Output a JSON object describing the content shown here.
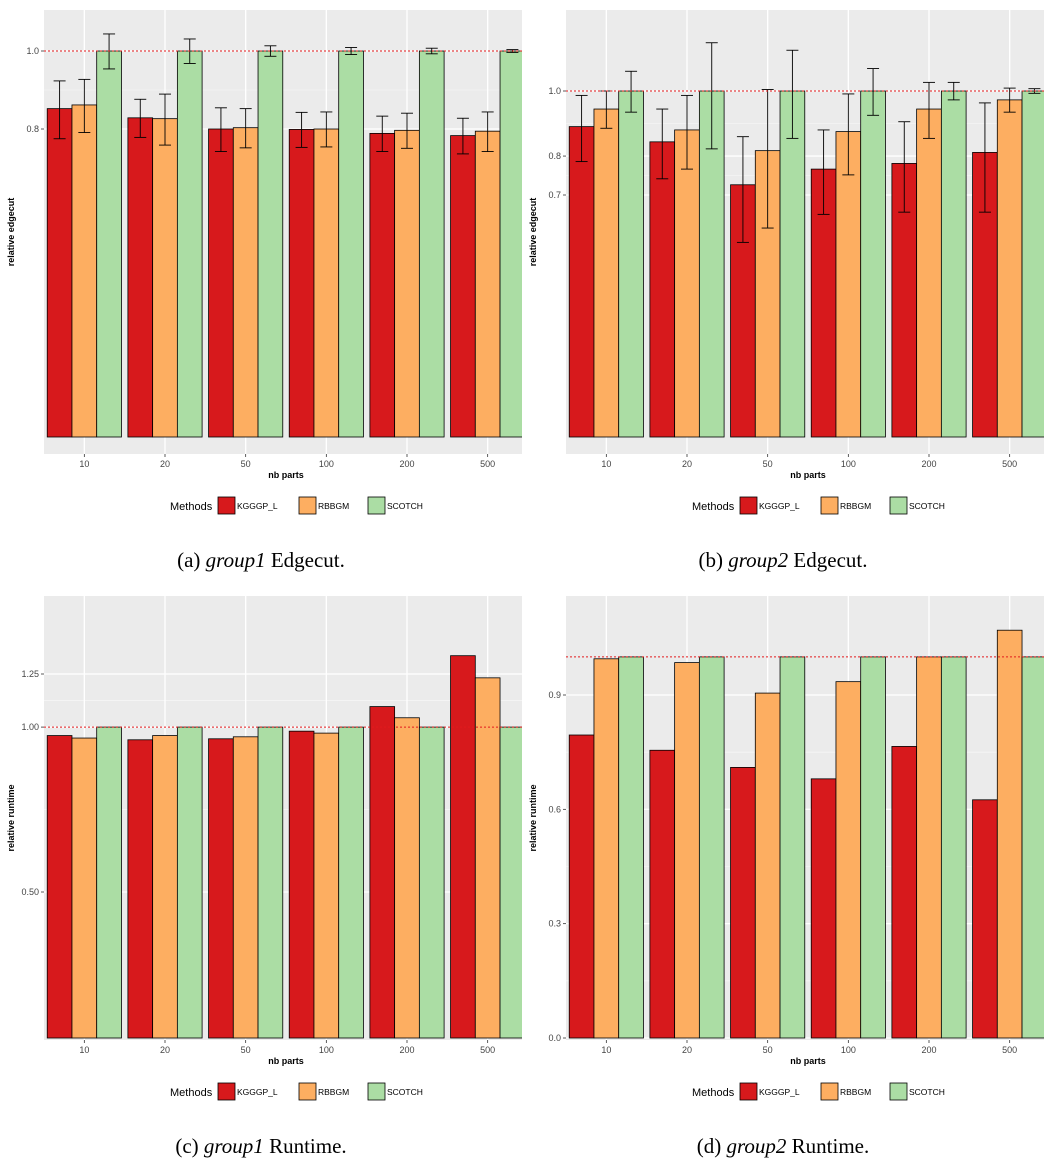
{
  "chart_data": [
    {
      "type": "bar",
      "caption_prefix": "(a)",
      "caption_italic": "group1",
      "caption_suffix": "Edgecut.",
      "categories": [
        "10",
        "20",
        "50",
        "100",
        "200",
        "500"
      ],
      "xlabel": "nb parts",
      "ylabel": "relative edgecut",
      "ylim": [
        0,
        1.1
      ],
      "scale": "log",
      "yticks": [
        0.8,
        1.0
      ],
      "ytick_labels": [
        "0.8",
        "1.0"
      ],
      "reference_line": 1.0,
      "series": [
        {
          "name": "KGGGP_L",
          "color": "#d7191c",
          "values": [
            0.848,
            0.826,
            0.8,
            0.799,
            0.79,
            0.785
          ],
          "err": [
            0.07,
            0.045,
            0.05,
            0.04,
            0.04,
            0.04
          ]
        },
        {
          "name": "RBBGM",
          "color": "#fdae61",
          "values": [
            0.857,
            0.824,
            0.803,
            0.8,
            0.797,
            0.795
          ],
          "err": [
            0.065,
            0.06,
            0.045,
            0.04,
            0.04,
            0.045
          ]
        },
        {
          "name": "SCOTCH",
          "color": "#abdda4",
          "values": [
            1.0,
            1.0,
            1.0,
            1.0,
            1.0,
            1.0
          ],
          "err": [
            0.05,
            0.035,
            0.015,
            0.01,
            0.008,
            0.004
          ]
        }
      ],
      "legend_title": "Methods",
      "legend_position": "bottom",
      "grid": true
    },
    {
      "type": "bar",
      "caption_prefix": "(b)",
      "caption_italic": "group2",
      "caption_suffix": "Edgecut.",
      "categories": [
        "10",
        "20",
        "50",
        "100",
        "200",
        "500"
      ],
      "xlabel": "nb parts",
      "ylabel": "relative edgecut",
      "scale": "log",
      "yticks": [
        0.7,
        0.8,
        1.0
      ],
      "ytick_labels": [
        "0.7",
        "0.8",
        "1.0"
      ],
      "reference_line": 1.0,
      "series": [
        {
          "name": "KGGGP_L",
          "color": "#d7191c",
          "values": [
            0.885,
            0.84,
            0.725,
            0.765,
            0.78,
            0.81
          ],
          "err": [
            0.1,
            0.1,
            0.13,
            0.11,
            0.12,
            0.15
          ]
        },
        {
          "name": "RBBGM",
          "color": "#fdae61",
          "values": [
            0.94,
            0.875,
            0.815,
            0.87,
            0.94,
            0.97
          ],
          "err": [
            0.06,
            0.11,
            0.19,
            0.12,
            0.09,
            0.04
          ]
        },
        {
          "name": "SCOTCH",
          "color": "#abdda4",
          "values": [
            1.0,
            1.0,
            1.0,
            1.0,
            1.0,
            1.0
          ],
          "err": [
            0.07,
            0.18,
            0.15,
            0.08,
            0.03,
            0.008
          ]
        }
      ],
      "legend_title": "Methods",
      "legend_position": "bottom",
      "grid": true
    },
    {
      "type": "bar",
      "caption_prefix": "(c)",
      "caption_italic": "group1",
      "caption_suffix": "Runtime.",
      "categories": [
        "10",
        "20",
        "50",
        "100",
        "200",
        "500"
      ],
      "xlabel": "nb parts",
      "ylabel": "relative runtime",
      "scale": "log",
      "yticks": [
        0.5,
        1.0,
        1.25
      ],
      "ytick_labels": [
        "0.50",
        "1.00",
        "1.25"
      ],
      "reference_line": 1.0,
      "series": [
        {
          "name": "KGGGP_L",
          "color": "#d7191c",
          "values": [
            0.965,
            0.948,
            0.952,
            0.983,
            1.09,
            1.35
          ]
        },
        {
          "name": "RBBGM",
          "color": "#fdae61",
          "values": [
            0.955,
            0.965,
            0.96,
            0.975,
            1.04,
            1.23
          ]
        },
        {
          "name": "SCOTCH",
          "color": "#abdda4",
          "values": [
            1.0,
            1.0,
            1.0,
            1.0,
            1.0,
            1.0
          ]
        }
      ],
      "legend_title": "Methods",
      "legend_position": "bottom",
      "grid": true
    },
    {
      "type": "bar",
      "caption_prefix": "(d)",
      "caption_italic": "group2",
      "caption_suffix": "Runtime.",
      "categories": [
        "10",
        "20",
        "50",
        "100",
        "200",
        "500"
      ],
      "xlabel": "nb parts",
      "ylabel": "relative runtime",
      "scale": "linear",
      "yticks": [
        0.0,
        0.3,
        0.6,
        0.9
      ],
      "ytick_labels": [
        "0.0",
        "0.3",
        "0.6",
        "0.9"
      ],
      "reference_line": 1.0,
      "series": [
        {
          "name": "KGGGP_L",
          "color": "#d7191c",
          "values": [
            0.795,
            0.755,
            0.71,
            0.68,
            0.765,
            0.625
          ]
        },
        {
          "name": "RBBGM",
          "color": "#fdae61",
          "values": [
            0.995,
            0.985,
            0.905,
            0.935,
            1.0,
            1.07
          ]
        },
        {
          "name": "SCOTCH",
          "color": "#abdda4",
          "values": [
            1.0,
            1.0,
            1.0,
            1.0,
            1.0,
            1.0
          ]
        }
      ],
      "legend_title": "Methods",
      "legend_position": "bottom",
      "grid": true
    }
  ]
}
